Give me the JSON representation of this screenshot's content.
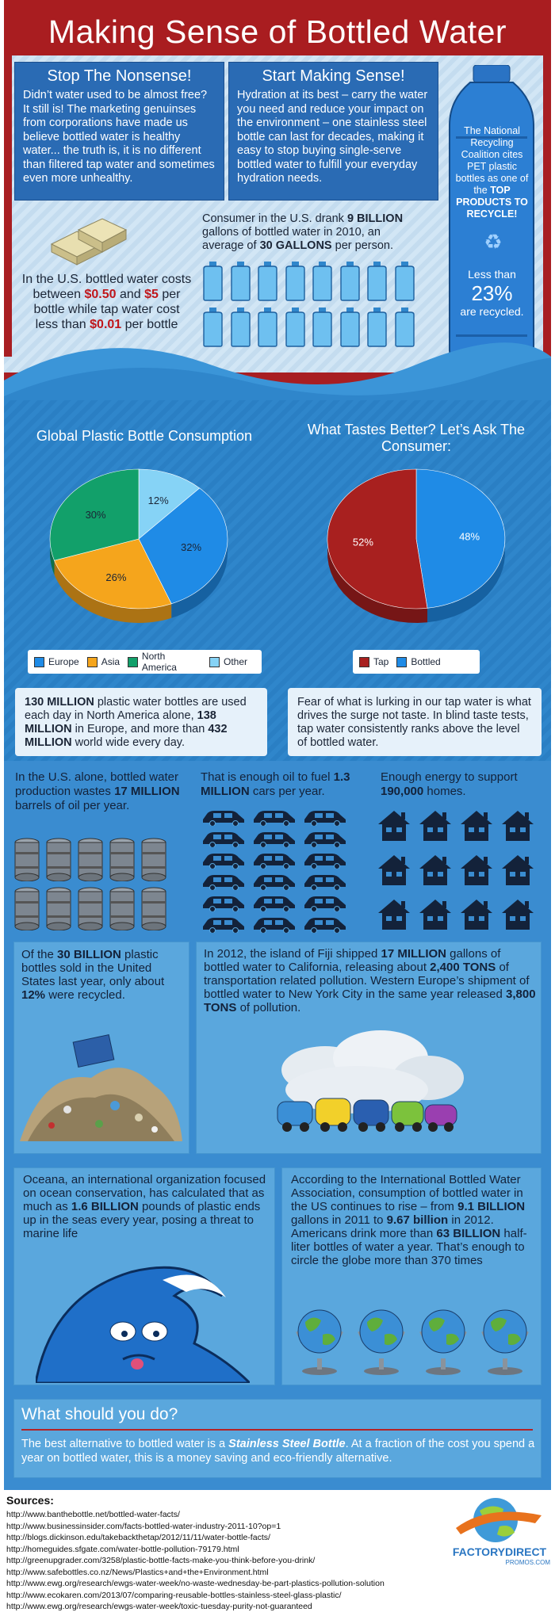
{
  "header": {
    "title": "Making Sense of Bottled Water"
  },
  "stop": {
    "title": "Stop The Nonsense!",
    "body": "Didn’t water used to be almost free? It still is! The marketing genuinses from corporations have made us believe bottled water is healthy water... the truth is, it is no different than filtered tap water and sometimes even more unhealthy."
  },
  "start": {
    "title": "Start Making Sense!",
    "body": "Hydration at its best – carry the water you need and reduce your impact on the environment – one stainless steel bottle can last for decades, making it easy to stop buying single-serve bottled water to fulfill your everyday hydration needs."
  },
  "bottle": {
    "text_pre": "The National Recycling Coalition cites PET plastic bottles as one of the ",
    "text_bold": "TOP PRODUCTS TO RECYCLE!",
    "less_than": "Less than",
    "percent": "23%",
    "recycled": "are recycled."
  },
  "cost": {
    "p1": "In the U.S. bottled water costs between ",
    "v1": "$0.50",
    "p2": " and ",
    "v2": "$5",
    "p3": " per bottle while tap water cost less than ",
    "v3": "$0.01",
    "p4": " per bottle"
  },
  "consumer": {
    "p1": "Consumer in the U.S. drank ",
    "b1": "9 BILLION",
    "p2": " gallons of bottled water in 2010, an average of ",
    "b2": "30 GALLONS",
    "p3": " per person."
  },
  "chart_data": [
    {
      "type": "pie",
      "title": "Global Plastic Bottle Consumption",
      "categories": [
        "Europe",
        "Asia",
        "North America",
        "Other"
      ],
      "values": [
        32,
        26,
        30,
        12
      ],
      "labels": [
        "32%",
        "26%",
        "30%",
        "12%"
      ],
      "colors": [
        "#1f8be6",
        "#f5a51c",
        "#12a06a",
        "#86d3f6"
      ],
      "legend": "bottom"
    },
    {
      "type": "pie",
      "title": "What Tastes Better? Let’s Ask The Consumer:",
      "categories": [
        "Tap",
        "Bottled"
      ],
      "values": [
        52,
        48
      ],
      "labels": [
        "52%",
        "48%"
      ],
      "colors": [
        "#a8201f",
        "#1f8be6"
      ],
      "legend": "bottom"
    }
  ],
  "bottles_used": {
    "b1": "130 MILLION",
    "p1": " plastic water bottles are used each day in North America alone, ",
    "b2": "138 MILLION",
    "p2": " in Europe, and more than ",
    "b3": "432 MILLION",
    "p3": " world wide every day."
  },
  "fear": {
    "text": "Fear of what is lurking in our tap water is what drives the surge not taste. In blind taste tests, tap water consistently ranks above the level of bottled water."
  },
  "oil": {
    "p1": "In the U.S. alone, bottled water production wastes ",
    "b1": "17 MILLION",
    "p2": " barrels of oil per year."
  },
  "cars": {
    "p1": "That is enough oil to fuel ",
    "b1": "1.3 MILLION",
    "p2": " cars per year."
  },
  "homes": {
    "p1": "Enough energy to support ",
    "b1": "190,000",
    "p2": " homes."
  },
  "plastic_sold": {
    "p1": "Of the ",
    "b1": "30 BILLION",
    "p2": " plastic bottles sold in the United States last year, only about ",
    "b2": "12%",
    "p3": " were recycled."
  },
  "fiji": {
    "p1": "In 2012, the island of Fiji shipped ",
    "b1": "17 MILLION",
    "p2": " gallons of bottled water to California, releasing about ",
    "b2": "2,400 TONS",
    "p3": " of transportation related pollution. Western Europe’s shipment of bottled water to New York City in the same year released ",
    "b3": "3,800 TONS",
    "p4": " of pollution."
  },
  "oceana": {
    "p1": "Oceana, an international organization focused on ocean conservation, has calculated that as much as ",
    "b1": "1.6 BILLION",
    "p2": " pounds of plastic ends up in the seas every year, posing a threat to marine life"
  },
  "ibwa": {
    "p1": "According to the International Bottled Water Association, consumption of bottled water in the US continues to rise – from ",
    "b1": "9.1 BILLION",
    "p2": " gallons in 2011 to ",
    "b2": "9.67 billion",
    "p3": " in 2012. Americans drink more than ",
    "b3": "63 BILLION",
    "p4": " half-liter bottles of water a year. That’s enough to circle the globe more than 370 times"
  },
  "todo": {
    "title": "What should you do?",
    "p1": "The best alternative to bottled water is a ",
    "b1": "Stainless Steel Bottle",
    "p2": ". At a fraction of the cost you spend a year on bottled water, this is a money saving and eco-friendly alternative."
  },
  "sources": {
    "title": "Sources:",
    "items": [
      "http://www.banthebottle.net/bottled-water-facts/",
      "http://www.businessinsider.com/facts-bottled-water-industry-2011-10?op=1",
      "http://blogs.dickinson.edu/takebackthetap/2012/11/11/water-bottle-facts/",
      "http://homeguides.sfgate.com/water-bottle-pollution-79179.html",
      "http://greenupgrader.com/3258/plastic-bottle-facts-make-you-think-before-you-drink/",
      "http://www.safebottles.co.nz/News/Plastics+and+the+Environment.html",
      "http://www.ewg.org/research/ewgs-water-week/no-waste-wednesday-be-part-plastics-pollution-solution",
      "http://www.ecokaren.com/2013/07/comparing-reusable-bottles-stainless-steel-glass-plastic/",
      "http://www.ewg.org/research/ewgs-water-week/toxic-tuesday-purity-not-guaranteed"
    ]
  },
  "logo": {
    "name": "FACTORYDIRECT",
    "sub": "PROMOS.COM"
  },
  "colors": {
    "header": "#a91d20",
    "accent_red": "#c0161b",
    "panel_blue": "#2a6bb4",
    "section_blue": "#3a8cd0"
  }
}
